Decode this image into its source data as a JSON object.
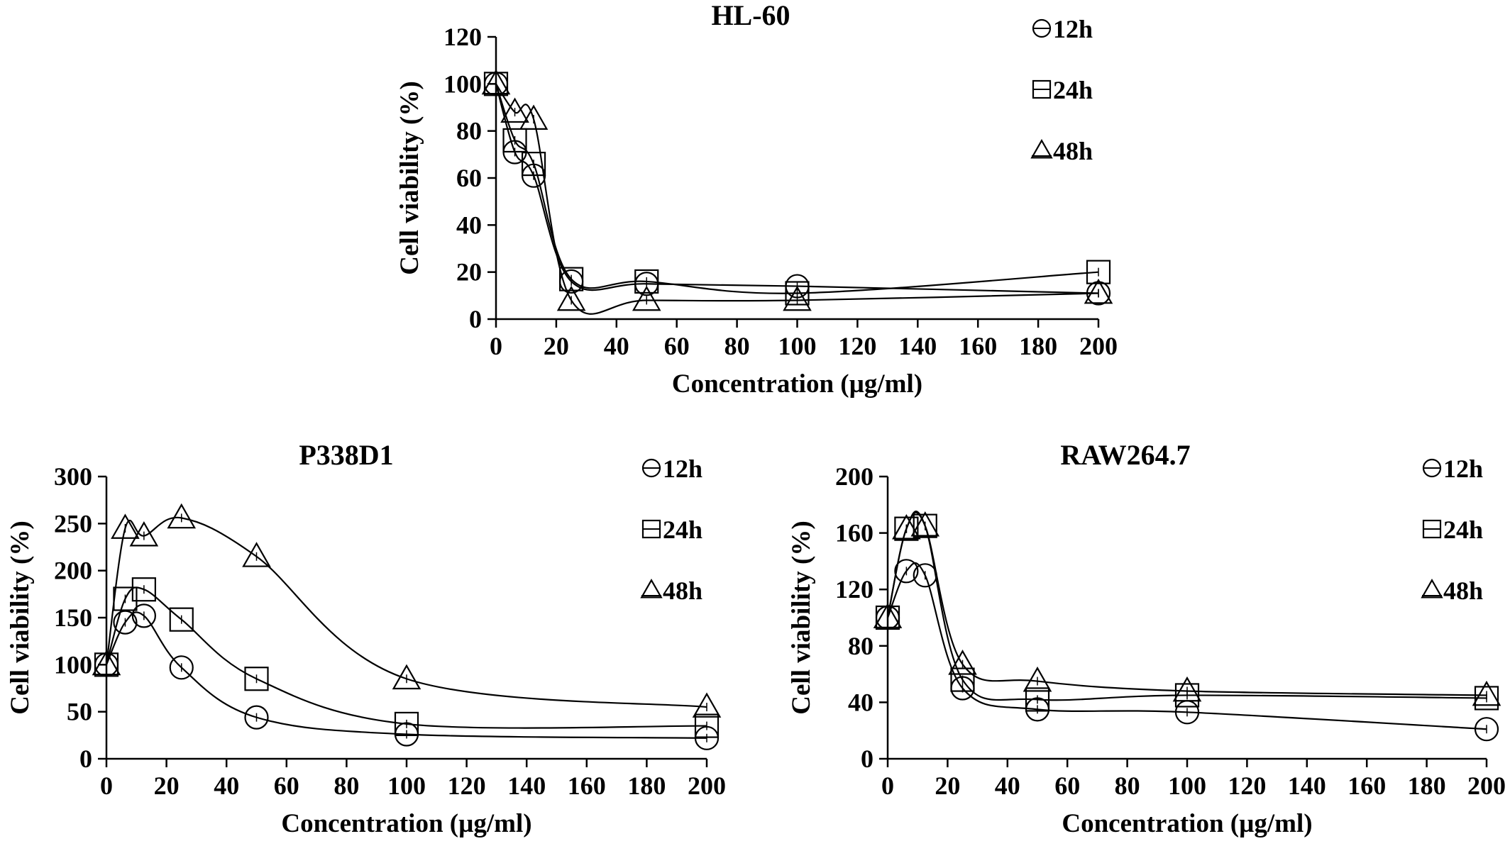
{
  "chart_data": [
    {
      "type": "scatter",
      "title": "HL-60",
      "xlabel": "Concentration (µg/ml)",
      "ylabel": "Cell viability (%)",
      "xlim": [
        0,
        200
      ],
      "ylim": [
        0,
        120
      ],
      "xticks": [
        "0",
        "20",
        "40",
        "60",
        "80",
        "100",
        "120",
        "140",
        "160",
        "180",
        "200"
      ],
      "yticks": [
        "0",
        "20",
        "40",
        "60",
        "80",
        "100",
        "120"
      ],
      "grid": false,
      "legend_position": "top-right",
      "x": [
        0,
        6.25,
        12.5,
        25,
        50,
        100,
        200
      ],
      "series": [
        {
          "name": "12h",
          "marker": "circle",
          "values": [
            100,
            71,
            61,
            16,
            15,
            14,
            11
          ]
        },
        {
          "name": "24h",
          "marker": "square",
          "values": [
            100,
            76,
            66,
            17,
            16,
            11,
            20
          ]
        },
        {
          "name": "48h",
          "marker": "triangle",
          "values": [
            100,
            88,
            85,
            8,
            8,
            8,
            11
          ]
        }
      ]
    },
    {
      "type": "scatter",
      "title": "P338D1",
      "xlabel": "Concentration (µg/ml)",
      "ylabel": "Cell viability (%)",
      "xlim": [
        0,
        200
      ],
      "ylim": [
        0,
        300
      ],
      "xticks": [
        "0",
        "20",
        "40",
        "60",
        "80",
        "100",
        "120",
        "140",
        "160",
        "180",
        "200"
      ],
      "yticks": [
        "0",
        "50",
        "100",
        "150",
        "200",
        "250",
        "300"
      ],
      "grid": false,
      "legend_position": "top-right",
      "x": [
        0,
        6.25,
        12.5,
        25,
        50,
        100,
        200
      ],
      "series": [
        {
          "name": "12h",
          "marker": "circle",
          "values": [
            100,
            145,
            152,
            97,
            44,
            26,
            22
          ]
        },
        {
          "name": "24h",
          "marker": "square",
          "values": [
            100,
            170,
            180,
            148,
            85,
            37,
            35
          ]
        },
        {
          "name": "48h",
          "marker": "triangle",
          "values": [
            100,
            245,
            237,
            256,
            215,
            85,
            55
          ]
        }
      ]
    },
    {
      "type": "scatter",
      "title": "RAW264.7",
      "xlabel": "Concentration (µg/ml)",
      "ylabel": "Cell viability (%)",
      "xlim": [
        0,
        200
      ],
      "ylim": [
        0,
        200
      ],
      "xticks": [
        "0",
        "20",
        "40",
        "60",
        "80",
        "100",
        "120",
        "140",
        "160",
        "180",
        "200"
      ],
      "yticks": [
        "0",
        "40",
        "80",
        "120",
        "160",
        "200"
      ],
      "grid": false,
      "legend_position": "top-right",
      "x": [
        0,
        6.25,
        12.5,
        25,
        50,
        100,
        200
      ],
      "series": [
        {
          "name": "12h",
          "marker": "circle",
          "values": [
            100,
            133,
            130,
            50,
            35,
            33,
            21
          ]
        },
        {
          "name": "24h",
          "marker": "square",
          "values": [
            100,
            163,
            165,
            56,
            42,
            45,
            43
          ]
        },
        {
          "name": "48h",
          "marker": "triangle",
          "values": [
            100,
            163,
            165,
            67,
            55,
            48,
            45
          ]
        }
      ]
    }
  ]
}
